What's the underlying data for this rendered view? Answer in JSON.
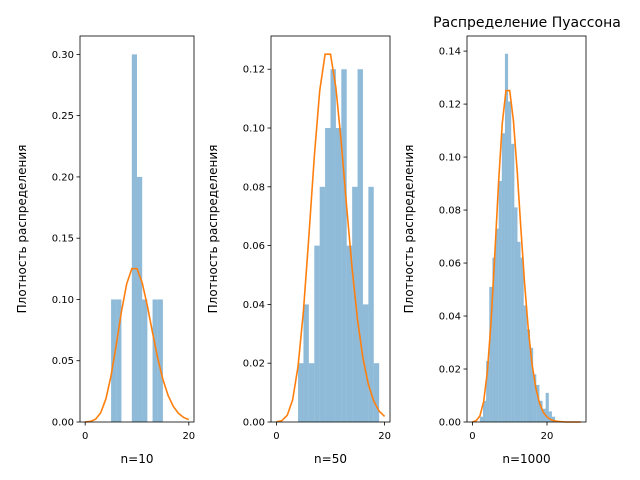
{
  "figure": {
    "title": "Распределение Пуассона"
  },
  "chart_data": [
    {
      "type": "bar",
      "xlabel": "n=10",
      "ylabel": "Плотность распределения",
      "xlim": [
        -1,
        21
      ],
      "ylim": [
        0,
        0.315
      ],
      "xticks": [
        "0",
        "20"
      ],
      "yticks": [
        "0.00",
        "0.05",
        "0.10",
        "0.15",
        "0.20",
        "0.25",
        "0.30"
      ],
      "hist": {
        "edges": [
          5,
          6,
          7,
          8,
          9,
          10,
          11,
          12,
          13,
          14,
          15
        ],
        "values": [
          0.1,
          0.1,
          0,
          0,
          0.3,
          0.2,
          0.1,
          0,
          0.1,
          0.1
        ],
        "color": "#1f77b4",
        "alpha": 0.5
      },
      "line": {
        "x": [
          0,
          1,
          2,
          3,
          4,
          5,
          6,
          7,
          8,
          9,
          10,
          11,
          12,
          13,
          14,
          15,
          16,
          17,
          18,
          19,
          20
        ],
        "y": [
          4.54e-05,
          0.000454,
          0.00227,
          0.00757,
          0.0189,
          0.0378,
          0.0631,
          0.0901,
          0.1126,
          0.1251,
          0.1251,
          0.1137,
          0.0948,
          0.0729,
          0.0521,
          0.0347,
          0.0217,
          0.0128,
          0.0071,
          0.0037,
          0.0019
        ],
        "color": "#ff7f0e"
      }
    },
    {
      "type": "bar",
      "xlabel": "n=50",
      "ylabel": "Плотность распределения",
      "xlim": [
        -1,
        21
      ],
      "ylim": [
        0,
        0.1313
      ],
      "xticks": [
        "0",
        "20"
      ],
      "yticks": [
        "0.00",
        "0.02",
        "0.04",
        "0.06",
        "0.08",
        "0.10",
        "0.12"
      ],
      "hist": {
        "edges": [
          4,
          5,
          6,
          7,
          8,
          9,
          10,
          11,
          12,
          13,
          14,
          15,
          16,
          17,
          18,
          19
        ],
        "values": [
          0.02,
          0.04,
          0.02,
          0.06,
          0.08,
          0.1,
          0.12,
          0.1,
          0.12,
          0.06,
          0.08,
          0.12,
          0.04,
          0.08,
          0.02
        ],
        "color": "#1f77b4",
        "alpha": 0.5
      },
      "line": {
        "x": [
          0,
          1,
          2,
          3,
          4,
          5,
          6,
          7,
          8,
          9,
          10,
          11,
          12,
          13,
          14,
          15,
          16,
          17,
          18,
          19,
          20
        ],
        "y": [
          4.54e-05,
          0.000454,
          0.00227,
          0.00757,
          0.0189,
          0.0378,
          0.0631,
          0.0901,
          0.1126,
          0.1251,
          0.1251,
          0.1137,
          0.0948,
          0.0729,
          0.0521,
          0.0347,
          0.0217,
          0.0128,
          0.0071,
          0.0037,
          0.0019
        ],
        "color": "#ff7f0e"
      }
    },
    {
      "type": "bar",
      "xlabel": "n=1000",
      "ylabel": "Плотность распределения",
      "xlim": [
        -1.45,
        30.45
      ],
      "ylim": [
        0,
        0.1457
      ],
      "xticks": [
        "0",
        "20"
      ],
      "yticks": [
        "0.00",
        "0.02",
        "0.04",
        "0.06",
        "0.08",
        "0.10",
        "0.12",
        "0.14"
      ],
      "hist": {
        "edges": [
          2.0,
          2.84,
          3.68,
          4.52,
          5.36,
          6.2,
          7.04,
          7.88,
          8.72,
          9.56,
          10.4,
          11.24,
          12.08,
          12.92,
          13.76,
          14.6,
          15.44,
          16.28,
          17.12,
          17.96,
          18.8,
          19.64,
          20.48,
          21.32,
          22.16
        ],
        "values": [
          0.002,
          0.008,
          0.023,
          0.051,
          0.062,
          0.073,
          0.091,
          0.109,
          0.139,
          0.121,
          0.105,
          0.081,
          0.068,
          0.062,
          0.044,
          0.035,
          0.028,
          0.018,
          0.014,
          0.008,
          0.005,
          0.011,
          0.004,
          0.002
        ],
        "color": "#1f77b4",
        "alpha": 0.5
      },
      "line": {
        "x": [
          0,
          1,
          2,
          3,
          4,
          5,
          6,
          7,
          8,
          9,
          10,
          11,
          12,
          13,
          14,
          15,
          16,
          17,
          18,
          19,
          20,
          21,
          22,
          23,
          24,
          25,
          26,
          27,
          28,
          29
        ],
        "y": [
          4.54e-05,
          0.000454,
          0.00227,
          0.00757,
          0.0189,
          0.0378,
          0.0631,
          0.0901,
          0.1126,
          0.1251,
          0.1251,
          0.1137,
          0.0948,
          0.0729,
          0.0521,
          0.0347,
          0.0217,
          0.0128,
          0.0071,
          0.0037,
          0.0019,
          0.0009,
          0.0004,
          0.0002,
          0.0001,
          0,
          0,
          0,
          0,
          0
        ],
        "color": "#ff7f0e"
      }
    }
  ]
}
